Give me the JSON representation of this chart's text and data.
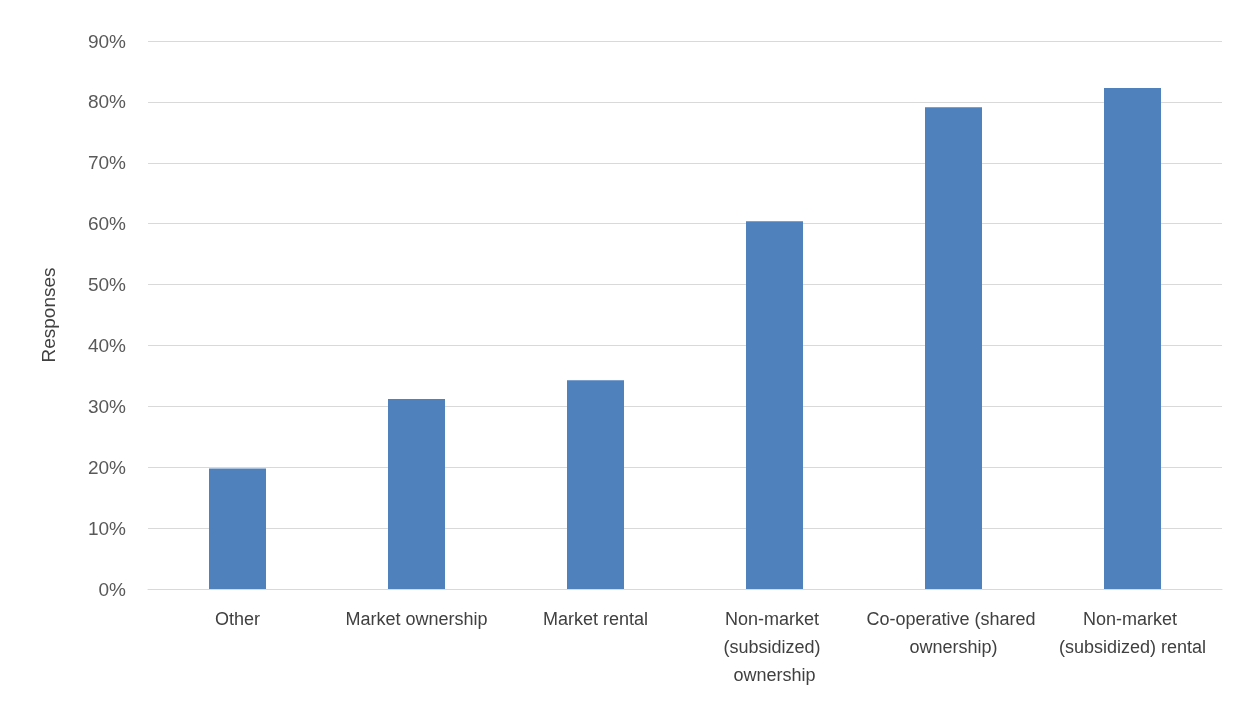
{
  "chart_data": {
    "type": "bar",
    "ylabel": "Responses",
    "categories": [
      "Other",
      "Market ownership",
      "Market rental",
      "Non-market (subsidized) ownership",
      "Co-operative (shared ownership)",
      "Non-market (subsidized) rental"
    ],
    "values": [
      19.8,
      31.2,
      34.3,
      60.4,
      79.1,
      82.3
    ],
    "color": "#4f81bd",
    "ylim": [
      0,
      90
    ],
    "yticks": [
      {
        "value": 0,
        "label": "0%"
      },
      {
        "value": 10,
        "label": "10%"
      },
      {
        "value": 20,
        "label": "20%"
      },
      {
        "value": 30,
        "label": "30%"
      },
      {
        "value": 40,
        "label": "40%"
      },
      {
        "value": 50,
        "label": "50%"
      },
      {
        "value": 60,
        "label": "60%"
      },
      {
        "value": 70,
        "label": "70%"
      },
      {
        "value": 80,
        "label": "80%"
      },
      {
        "value": 90,
        "label": "90%"
      }
    ],
    "grid": "y"
  }
}
